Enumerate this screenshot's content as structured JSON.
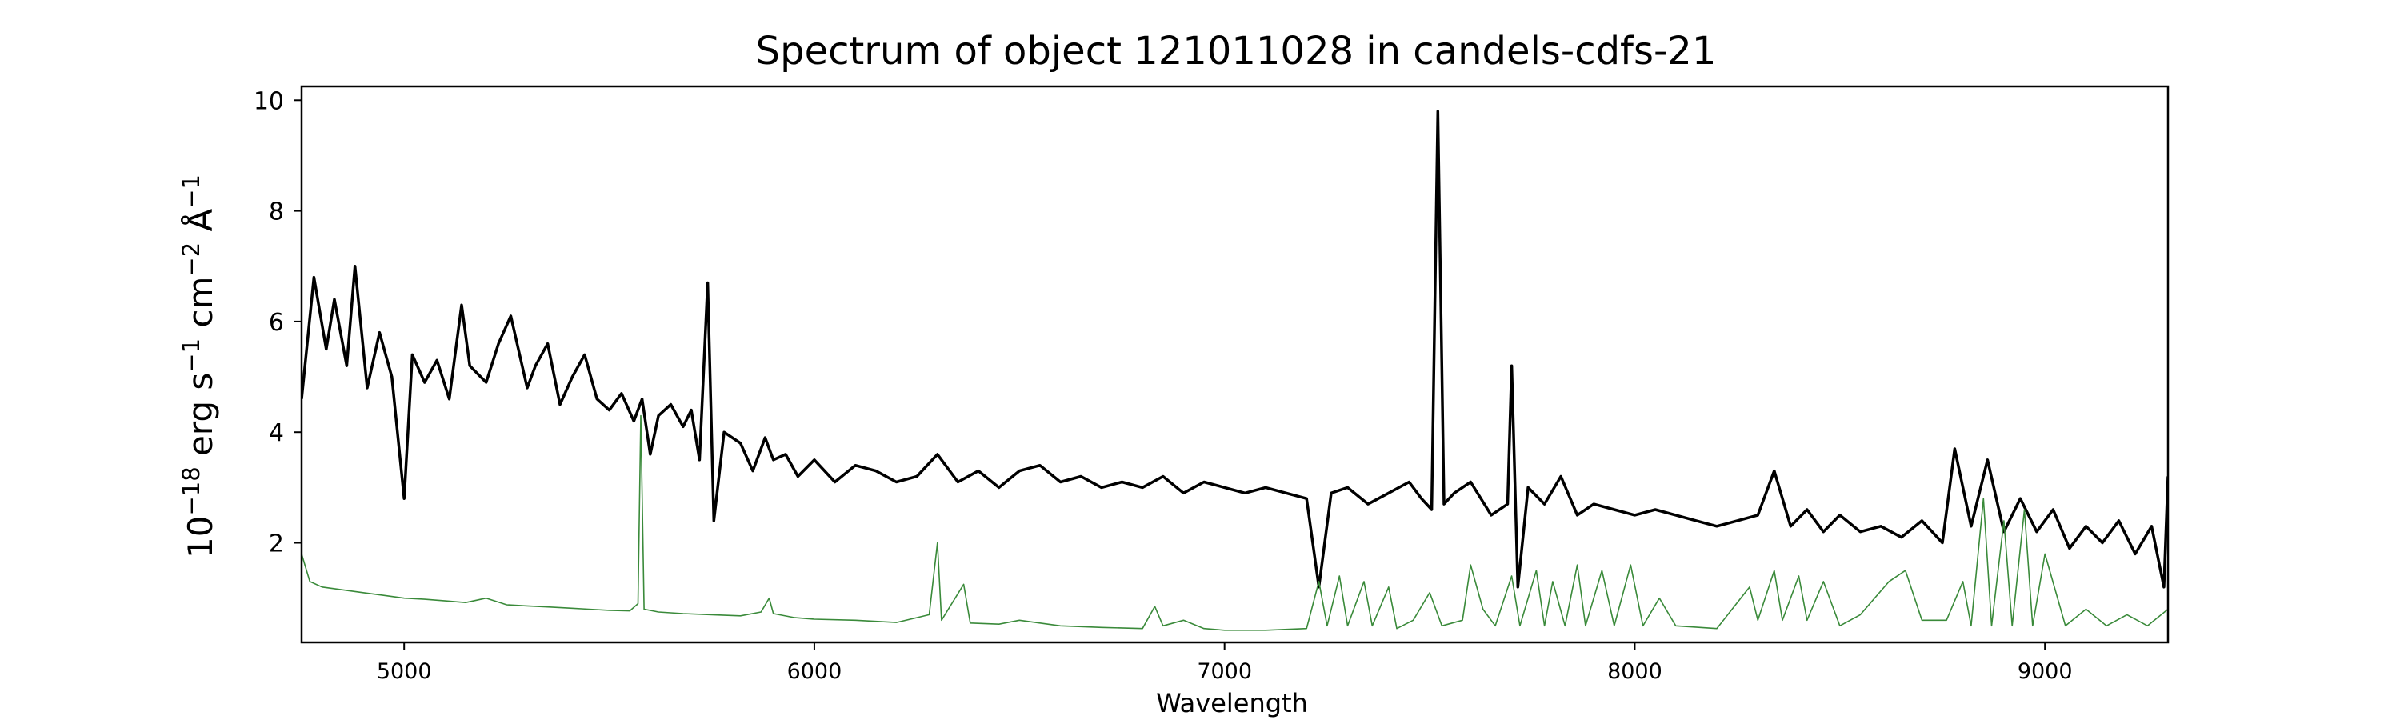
{
  "chart_data": {
    "type": "line",
    "title": "Spectrum of object 121011028 in candels-cdfs-21",
    "xlabel": "Wavelength",
    "ylabel": {
      "base": "10",
      "exp": "−18",
      "parts": [
        {
          "text": " erg s",
          "sup": "−1"
        },
        {
          "text": " cm",
          "sup": "−2"
        },
        {
          "text": " Å",
          "sup": "−1"
        }
      ]
    },
    "xlim": [
      4750,
      9300
    ],
    "ylim": [
      0.2,
      10.25
    ],
    "xticks": [
      5000,
      6000,
      7000,
      8000,
      9000
    ],
    "xtick_labels": [
      "5000",
      "6000",
      "7000",
      "8000",
      "9000"
    ],
    "yticks": [
      2,
      4,
      6,
      8,
      10
    ],
    "ytick_labels": [
      "2",
      "4",
      "6",
      "8",
      "10"
    ],
    "grid": false,
    "series": [
      {
        "color": "#000000",
        "points": [
          [
            4750,
            4.6
          ],
          [
            4780,
            6.8
          ],
          [
            4810,
            5.5
          ],
          [
            4830,
            6.4
          ],
          [
            4860,
            5.2
          ],
          [
            4880,
            7.0
          ],
          [
            4910,
            4.8
          ],
          [
            4940,
            5.8
          ],
          [
            4970,
            5.0
          ],
          [
            5000,
            2.8
          ],
          [
            5020,
            5.4
          ],
          [
            5050,
            4.9
          ],
          [
            5080,
            5.3
          ],
          [
            5110,
            4.6
          ],
          [
            5140,
            6.3
          ],
          [
            5160,
            5.2
          ],
          [
            5200,
            4.9
          ],
          [
            5230,
            5.6
          ],
          [
            5260,
            6.1
          ],
          [
            5300,
            4.8
          ],
          [
            5320,
            5.2
          ],
          [
            5350,
            5.6
          ],
          [
            5380,
            4.5
          ],
          [
            5410,
            5.0
          ],
          [
            5440,
            5.4
          ],
          [
            5470,
            4.6
          ],
          [
            5500,
            4.4
          ],
          [
            5530,
            4.7
          ],
          [
            5560,
            4.2
          ],
          [
            5580,
            4.6
          ],
          [
            5600,
            3.6
          ],
          [
            5620,
            4.3
          ],
          [
            5650,
            4.5
          ],
          [
            5680,
            4.1
          ],
          [
            5700,
            4.4
          ],
          [
            5720,
            3.5
          ],
          [
            5740,
            6.7
          ],
          [
            5755,
            2.4
          ],
          [
            5780,
            4.0
          ],
          [
            5820,
            3.8
          ],
          [
            5850,
            3.3
          ],
          [
            5880,
            3.9
          ],
          [
            5900,
            3.5
          ],
          [
            5930,
            3.6
          ],
          [
            5960,
            3.2
          ],
          [
            6000,
            3.5
          ],
          [
            6050,
            3.1
          ],
          [
            6100,
            3.4
          ],
          [
            6150,
            3.3
          ],
          [
            6200,
            3.1
          ],
          [
            6250,
            3.2
          ],
          [
            6300,
            3.6
          ],
          [
            6350,
            3.1
          ],
          [
            6400,
            3.3
          ],
          [
            6450,
            3.0
          ],
          [
            6500,
            3.3
          ],
          [
            6550,
            3.4
          ],
          [
            6600,
            3.1
          ],
          [
            6650,
            3.2
          ],
          [
            6700,
            3.0
          ],
          [
            6750,
            3.1
          ],
          [
            6800,
            3.0
          ],
          [
            6850,
            3.2
          ],
          [
            6900,
            2.9
          ],
          [
            6950,
            3.1
          ],
          [
            7000,
            3.0
          ],
          [
            7050,
            2.9
          ],
          [
            7100,
            3.0
          ],
          [
            7150,
            2.9
          ],
          [
            7200,
            2.8
          ],
          [
            7230,
            1.2
          ],
          [
            7260,
            2.9
          ],
          [
            7300,
            3.0
          ],
          [
            7350,
            2.7
          ],
          [
            7400,
            2.9
          ],
          [
            7450,
            3.1
          ],
          [
            7480,
            2.8
          ],
          [
            7505,
            2.6
          ],
          [
            7520,
            9.8
          ],
          [
            7535,
            2.7
          ],
          [
            7560,
            2.9
          ],
          [
            7600,
            3.1
          ],
          [
            7650,
            2.5
          ],
          [
            7690,
            2.7
          ],
          [
            7700,
            5.2
          ],
          [
            7715,
            1.2
          ],
          [
            7740,
            3.0
          ],
          [
            7780,
            2.7
          ],
          [
            7820,
            3.2
          ],
          [
            7860,
            2.5
          ],
          [
            7900,
            2.7
          ],
          [
            7950,
            2.6
          ],
          [
            8000,
            2.5
          ],
          [
            8050,
            2.6
          ],
          [
            8100,
            2.5
          ],
          [
            8150,
            2.4
          ],
          [
            8200,
            2.3
          ],
          [
            8250,
            2.4
          ],
          [
            8300,
            2.5
          ],
          [
            8340,
            3.3
          ],
          [
            8380,
            2.3
          ],
          [
            8420,
            2.6
          ],
          [
            8460,
            2.2
          ],
          [
            8500,
            2.5
          ],
          [
            8550,
            2.2
          ],
          [
            8600,
            2.3
          ],
          [
            8650,
            2.1
          ],
          [
            8700,
            2.4
          ],
          [
            8750,
            2.0
          ],
          [
            8780,
            3.7
          ],
          [
            8820,
            2.3
          ],
          [
            8860,
            3.5
          ],
          [
            8900,
            2.2
          ],
          [
            8940,
            2.8
          ],
          [
            8980,
            2.2
          ],
          [
            9020,
            2.6
          ],
          [
            9060,
            1.9
          ],
          [
            9100,
            2.3
          ],
          [
            9140,
            2.0
          ],
          [
            9180,
            2.4
          ],
          [
            9220,
            1.8
          ],
          [
            9260,
            2.3
          ],
          [
            9290,
            1.2
          ],
          [
            9300,
            3.2
          ]
        ]
      },
      {
        "color": "#3a8a3a",
        "points": [
          [
            4750,
            1.8
          ],
          [
            4770,
            1.3
          ],
          [
            4800,
            1.2
          ],
          [
            4850,
            1.15
          ],
          [
            4900,
            1.1
          ],
          [
            4950,
            1.05
          ],
          [
            5000,
            1.0
          ],
          [
            5050,
            0.98
          ],
          [
            5100,
            0.95
          ],
          [
            5150,
            0.92
          ],
          [
            5200,
            1.0
          ],
          [
            5250,
            0.88
          ],
          [
            5300,
            0.86
          ],
          [
            5350,
            0.84
          ],
          [
            5400,
            0.82
          ],
          [
            5450,
            0.8
          ],
          [
            5500,
            0.78
          ],
          [
            5550,
            0.77
          ],
          [
            5570,
            0.9
          ],
          [
            5577,
            4.3
          ],
          [
            5585,
            0.8
          ],
          [
            5620,
            0.75
          ],
          [
            5680,
            0.72
          ],
          [
            5750,
            0.7
          ],
          [
            5820,
            0.68
          ],
          [
            5870,
            0.75
          ],
          [
            5890,
            1.0
          ],
          [
            5900,
            0.72
          ],
          [
            5950,
            0.65
          ],
          [
            6000,
            0.62
          ],
          [
            6100,
            0.6
          ],
          [
            6200,
            0.56
          ],
          [
            6280,
            0.7
          ],
          [
            6300,
            2.0
          ],
          [
            6310,
            0.6
          ],
          [
            6364,
            1.25
          ],
          [
            6380,
            0.55
          ],
          [
            6450,
            0.53
          ],
          [
            6500,
            0.6
          ],
          [
            6550,
            0.55
          ],
          [
            6600,
            0.5
          ],
          [
            6700,
            0.47
          ],
          [
            6800,
            0.45
          ],
          [
            6830,
            0.85
          ],
          [
            6850,
            0.5
          ],
          [
            6900,
            0.6
          ],
          [
            6950,
            0.45
          ],
          [
            7000,
            0.42
          ],
          [
            7100,
            0.42
          ],
          [
            7200,
            0.45
          ],
          [
            7230,
            1.3
          ],
          [
            7250,
            0.5
          ],
          [
            7280,
            1.4
          ],
          [
            7300,
            0.5
          ],
          [
            7340,
            1.3
          ],
          [
            7360,
            0.5
          ],
          [
            7400,
            1.2
          ],
          [
            7420,
            0.45
          ],
          [
            7460,
            0.6
          ],
          [
            7500,
            1.1
          ],
          [
            7530,
            0.5
          ],
          [
            7580,
            0.6
          ],
          [
            7600,
            1.6
          ],
          [
            7630,
            0.8
          ],
          [
            7660,
            0.5
          ],
          [
            7700,
            1.4
          ],
          [
            7720,
            0.5
          ],
          [
            7760,
            1.5
          ],
          [
            7780,
            0.5
          ],
          [
            7800,
            1.3
          ],
          [
            7830,
            0.5
          ],
          [
            7860,
            1.6
          ],
          [
            7880,
            0.5
          ],
          [
            7920,
            1.5
          ],
          [
            7950,
            0.5
          ],
          [
            7990,
            1.6
          ],
          [
            8020,
            0.5
          ],
          [
            8060,
            1.0
          ],
          [
            8100,
            0.5
          ],
          [
            8200,
            0.45
          ],
          [
            8280,
            1.2
          ],
          [
            8300,
            0.6
          ],
          [
            8340,
            1.5
          ],
          [
            8360,
            0.6
          ],
          [
            8400,
            1.4
          ],
          [
            8420,
            0.6
          ],
          [
            8460,
            1.3
          ],
          [
            8500,
            0.5
          ],
          [
            8550,
            0.7
          ],
          [
            8620,
            1.3
          ],
          [
            8660,
            1.5
          ],
          [
            8700,
            0.6
          ],
          [
            8760,
            0.6
          ],
          [
            8800,
            1.3
          ],
          [
            8820,
            0.5
          ],
          [
            8850,
            2.8
          ],
          [
            8870,
            0.5
          ],
          [
            8900,
            2.4
          ],
          [
            8920,
            0.5
          ],
          [
            8950,
            2.6
          ],
          [
            8970,
            0.5
          ],
          [
            9000,
            1.8
          ],
          [
            9050,
            0.5
          ],
          [
            9100,
            0.8
          ],
          [
            9150,
            0.5
          ],
          [
            9200,
            0.7
          ],
          [
            9250,
            0.5
          ],
          [
            9300,
            0.8
          ]
        ]
      }
    ]
  }
}
